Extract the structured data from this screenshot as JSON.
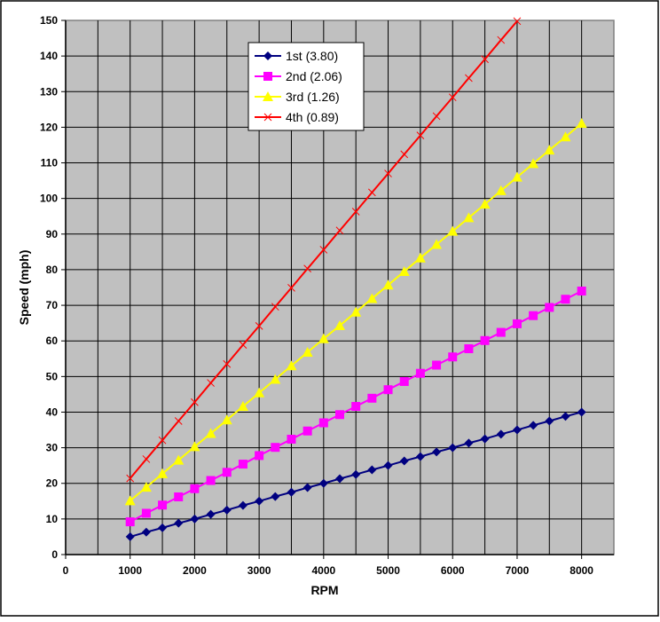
{
  "chart_data": {
    "type": "line",
    "title": "",
    "xlabel": "RPM",
    "ylabel": "Speed (mph)",
    "xlim": [
      0,
      8500
    ],
    "ylim": [
      0,
      150
    ],
    "x_ticks": [
      0,
      1000,
      2000,
      3000,
      4000,
      5000,
      6000,
      7000,
      8000
    ],
    "y_ticks": [
      0,
      10,
      20,
      30,
      40,
      50,
      60,
      70,
      80,
      90,
      100,
      110,
      120,
      130,
      140,
      150
    ],
    "grid": true,
    "legend_position": "top-left",
    "x": [
      1000,
      1250,
      1500,
      1750,
      2000,
      2250,
      2500,
      2750,
      3000,
      3250,
      3500,
      3750,
      4000,
      4250,
      4500,
      4750,
      5000,
      5250,
      5500,
      5750,
      6000,
      6250,
      6500,
      6750,
      7000,
      7250,
      7500,
      7750,
      8000
    ],
    "series": [
      {
        "name": "1st (3.80)",
        "color": "#000080",
        "marker": "diamond",
        "slope": 0.005,
        "values": [
          5,
          6.3,
          7.5,
          8.8,
          10,
          11.3,
          12.5,
          13.8,
          15,
          16.3,
          17.5,
          18.8,
          20,
          21.3,
          22.5,
          23.8,
          25,
          26.3,
          27.5,
          28.8,
          30,
          31.3,
          32.5,
          33.8,
          35,
          36.3,
          37.5,
          38.8,
          40
        ]
      },
      {
        "name": "2nd (2.06)",
        "color": "#FF00FF",
        "marker": "square",
        "values": [
          9.2,
          11.6,
          13.9,
          16.2,
          18.5,
          20.8,
          23.1,
          25.4,
          27.8,
          30.1,
          32.4,
          34.7,
          37,
          39.3,
          41.6,
          43.9,
          46.3,
          48.6,
          50.9,
          53.2,
          55.5,
          57.8,
          60.1,
          62.4,
          64.8,
          67.1,
          69.4,
          71.7,
          74
        ]
      },
      {
        "name": "3rd (1.26)",
        "color": "#FFFF00",
        "marker": "triangle",
        "values": [
          15.1,
          18.9,
          22.7,
          26.5,
          30.3,
          34,
          37.8,
          41.6,
          45.4,
          49.2,
          53,
          56.8,
          60.6,
          64.3,
          68.1,
          71.9,
          75.7,
          79.5,
          83.3,
          87.1,
          90.8,
          94.6,
          98.4,
          102.2,
          106,
          109.8,
          113.6,
          117.3,
          121.1
        ]
      },
      {
        "name": "4th (0.89)",
        "color": "#FF0000",
        "marker": "x",
        "values": [
          21.4,
          26.8,
          32.1,
          37.5,
          42.8,
          48.2,
          53.5,
          58.9,
          64.2,
          69.6,
          74.9,
          80.3,
          85.6,
          91,
          96.3,
          101.7,
          107,
          112.4,
          117.7,
          123.1,
          128.4,
          133.8,
          139.1,
          144.5,
          149.8,
          null,
          null,
          null,
          null
        ]
      }
    ]
  }
}
